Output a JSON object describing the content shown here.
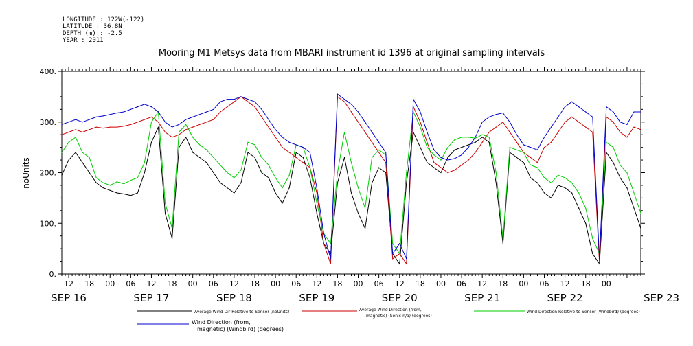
{
  "header": {
    "meta": [
      "LONGITUDE : 122W(-122)",
      "LATITUDE : 36.8N",
      "DEPTH (m) : -2.5",
      "YEAR : 2011"
    ]
  },
  "chart_data": {
    "type": "line",
    "title": "Mooring M1 Metsys data from MBARI instrument id 1396 at original sampling intervals",
    "xlabel": "",
    "ylabel": "noUnits",
    "ylim": [
      0,
      400
    ],
    "yticks": [
      "0.",
      "100.",
      "200.",
      "300.",
      "400."
    ],
    "y_tick_values": [
      0,
      100,
      200,
      300,
      400
    ],
    "xlim_hours": [
      0,
      168
    ],
    "x_hour_labels": [
      "12",
      "18",
      "00",
      "06",
      "12",
      "18",
      "00",
      "06",
      "12",
      "18",
      "00",
      "06",
      "12",
      "18",
      "00",
      "06",
      "12",
      "18",
      "00",
      "06",
      "12",
      "18",
      "00",
      "06",
      "12",
      "18",
      "00"
    ],
    "day_labels": [
      "SEP 16",
      "SEP 17",
      "SEP 18",
      "SEP 19",
      "SEP 20",
      "SEP 21",
      "SEP 22",
      "SEP 23"
    ],
    "grid": false,
    "legend_placement": "bottom",
    "series": [
      {
        "name": "Average Wind Dir Relative to Sensor (noUnits)",
        "color": "#000000",
        "x": [
          0,
          2,
          4,
          6,
          8,
          10,
          12,
          14,
          16,
          18,
          20,
          22,
          24,
          26,
          28,
          30,
          32,
          34,
          36,
          38,
          40,
          42,
          44,
          46,
          48,
          50,
          52,
          54,
          56,
          58,
          60,
          62,
          64,
          66,
          68,
          70,
          72,
          74,
          76,
          78,
          80,
          82,
          84,
          86,
          88,
          90,
          92,
          94,
          96,
          98,
          100,
          102,
          104,
          106,
          108,
          110,
          112,
          114,
          116,
          118,
          120,
          122,
          124,
          126,
          128,
          130,
          132,
          134,
          136,
          138,
          140,
          142,
          144,
          146,
          148,
          150,
          152,
          154,
          156,
          158,
          160,
          162,
          164,
          166,
          168
        ],
        "values": [
          195,
          225,
          240,
          220,
          200,
          180,
          170,
          165,
          160,
          158,
          155,
          160,
          200,
          260,
          290,
          120,
          70,
          250,
          270,
          240,
          230,
          220,
          200,
          180,
          170,
          160,
          180,
          240,
          230,
          200,
          190,
          160,
          140,
          170,
          240,
          230,
          190,
          120,
          60,
          40,
          180,
          230,
          160,
          120,
          90,
          180,
          210,
          200,
          40,
          20,
          180,
          280,
          250,
          220,
          210,
          200,
          230,
          245,
          250,
          255,
          260,
          270,
          260,
          180,
          60,
          240,
          230,
          220,
          190,
          180,
          160,
          150,
          175,
          170,
          160,
          130,
          100,
          40,
          20,
          240,
          220,
          190,
          170,
          130,
          90
        ]
      },
      {
        "name": "Average Wind Direction (from, magnetic) (Sonic-n/a) (degrees)",
        "color": "#cc0000",
        "x": [
          0,
          2,
          4,
          6,
          8,
          10,
          12,
          14,
          16,
          18,
          20,
          22,
          24,
          26,
          28,
          30,
          32,
          34,
          36,
          38,
          40,
          42,
          44,
          46,
          48,
          50,
          52,
          54,
          56,
          58,
          60,
          62,
          64,
          66,
          68,
          70,
          72,
          74,
          76,
          78,
          80,
          82,
          84,
          86,
          88,
          90,
          92,
          94,
          96,
          98,
          100,
          102,
          104,
          106,
          108,
          110,
          112,
          114,
          116,
          118,
          120,
          122,
          124,
          126,
          128,
          130,
          132,
          134,
          136,
          138,
          140,
          142,
          144,
          146,
          148,
          150,
          152,
          154,
          156,
          158,
          160,
          162,
          164,
          166,
          168
        ],
        "values": [
          275,
          280,
          285,
          280,
          285,
          290,
          288,
          290,
          290,
          292,
          295,
          300,
          305,
          310,
          300,
          280,
          270,
          275,
          285,
          290,
          295,
          300,
          305,
          320,
          330,
          340,
          350,
          340,
          330,
          310,
          290,
          270,
          250,
          240,
          230,
          220,
          210,
          160,
          60,
          20,
          350,
          340,
          320,
          300,
          280,
          260,
          240,
          220,
          30,
          40,
          20,
          330,
          300,
          260,
          220,
          210,
          200,
          205,
          215,
          225,
          240,
          260,
          280,
          290,
          300,
          280,
          260,
          240,
          230,
          220,
          250,
          260,
          280,
          300,
          310,
          300,
          290,
          280,
          20,
          310,
          300,
          280,
          270,
          290,
          285
        ]
      },
      {
        "name": "Wind Direction Relative to Sensor (Windbird) (degrees)",
        "color": "#00cc00",
        "x": [
          0,
          2,
          4,
          6,
          8,
          10,
          12,
          14,
          16,
          18,
          20,
          22,
          24,
          26,
          28,
          30,
          32,
          34,
          36,
          38,
          40,
          42,
          44,
          46,
          48,
          50,
          52,
          54,
          56,
          58,
          60,
          62,
          64,
          66,
          68,
          70,
          72,
          74,
          76,
          78,
          80,
          82,
          84,
          86,
          88,
          90,
          92,
          94,
          96,
          98,
          100,
          102,
          104,
          106,
          108,
          110,
          112,
          114,
          116,
          118,
          120,
          122,
          124,
          126,
          128,
          130,
          132,
          134,
          136,
          138,
          140,
          142,
          144,
          146,
          148,
          150,
          152,
          154,
          156,
          158,
          160,
          162,
          164,
          166,
          168
        ],
        "values": [
          240,
          260,
          270,
          240,
          230,
          190,
          180,
          175,
          182,
          178,
          185,
          190,
          220,
          300,
          320,
          140,
          90,
          280,
          295,
          270,
          255,
          245,
          230,
          215,
          200,
          190,
          205,
          260,
          255,
          230,
          215,
          190,
          170,
          195,
          255,
          250,
          210,
          140,
          80,
          60,
          200,
          280,
          220,
          170,
          130,
          230,
          245,
          235,
          60,
          40,
          200,
          320,
          290,
          250,
          235,
          225,
          250,
          265,
          270,
          270,
          268,
          275,
          270,
          200,
          70,
          250,
          245,
          240,
          215,
          210,
          190,
          180,
          195,
          190,
          180,
          160,
          130,
          70,
          40,
          260,
          250,
          215,
          200,
          160,
          120
        ]
      },
      {
        "name": "Wind Direction (from, magnetic) (Windbird) (degrees)",
        "color": "#0000cc",
        "x": [
          0,
          2,
          4,
          6,
          8,
          10,
          12,
          14,
          16,
          18,
          20,
          22,
          24,
          26,
          28,
          30,
          32,
          34,
          36,
          38,
          40,
          42,
          44,
          46,
          48,
          50,
          52,
          54,
          56,
          58,
          60,
          62,
          64,
          66,
          68,
          70,
          72,
          74,
          76,
          78,
          80,
          82,
          84,
          86,
          88,
          90,
          92,
          94,
          96,
          98,
          100,
          102,
          104,
          106,
          108,
          110,
          112,
          114,
          116,
          118,
          120,
          122,
          124,
          126,
          128,
          130,
          132,
          134,
          136,
          138,
          140,
          142,
          144,
          146,
          148,
          150,
          152,
          154,
          156,
          158,
          160,
          162,
          164,
          166,
          168
        ],
        "values": [
          295,
          300,
          305,
          300,
          305,
          310,
          312,
          315,
          318,
          320,
          325,
          330,
          335,
          330,
          320,
          300,
          290,
          295,
          305,
          310,
          315,
          320,
          325,
          340,
          345,
          345,
          350,
          345,
          340,
          325,
          305,
          285,
          270,
          260,
          255,
          250,
          240,
          170,
          80,
          30,
          355,
          345,
          335,
          320,
          300,
          280,
          260,
          240,
          40,
          60,
          30,
          345,
          320,
          280,
          245,
          230,
          225,
          228,
          235,
          250,
          270,
          300,
          310,
          315,
          318,
          300,
          275,
          255,
          250,
          245,
          270,
          290,
          310,
          330,
          340,
          330,
          320,
          310,
          30,
          330,
          320,
          300,
          295,
          320,
          320
        ]
      }
    ]
  }
}
